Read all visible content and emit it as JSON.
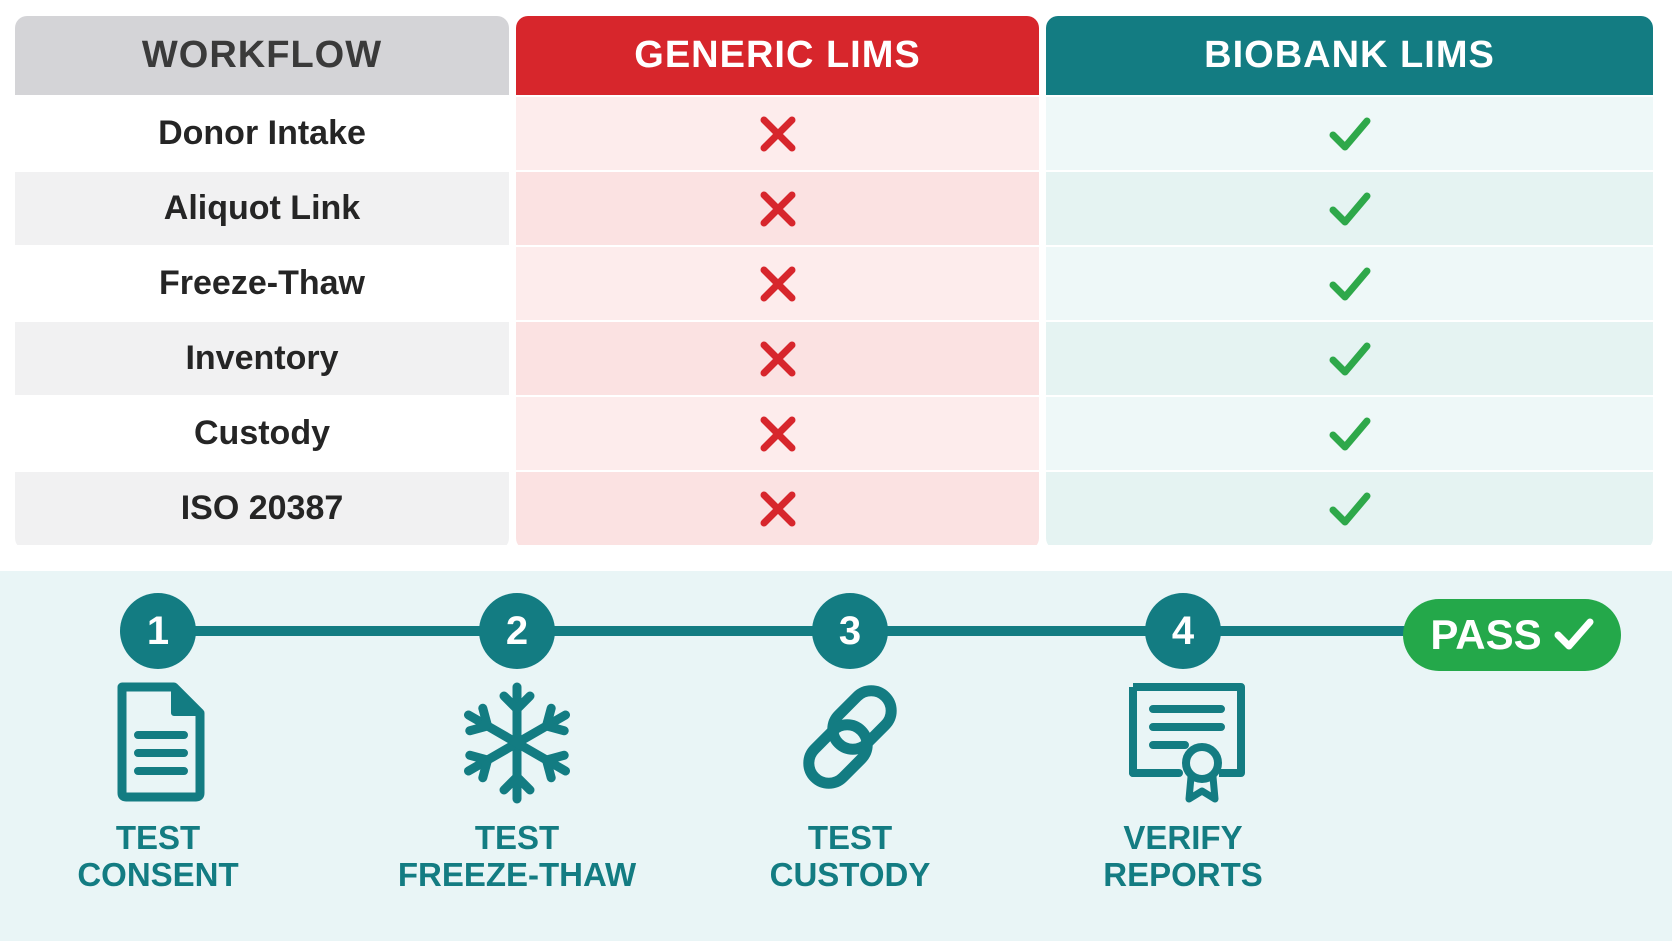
{
  "table": {
    "headers": {
      "workflow": "WORKFLOW",
      "generic": "GENERIC LIMS",
      "biobank": "BIOBANK LIMS"
    },
    "rows": [
      {
        "workflow": "Donor Intake",
        "generic": "cross-icon",
        "biobank": "check-icon"
      },
      {
        "workflow": "Aliquot Link",
        "generic": "cross-icon",
        "biobank": "check-icon"
      },
      {
        "workflow": "Freeze-Thaw",
        "generic": "cross-icon",
        "biobank": "check-icon"
      },
      {
        "workflow": "Inventory",
        "generic": "cross-icon",
        "biobank": "check-icon"
      },
      {
        "workflow": "Custody",
        "generic": "cross-icon",
        "biobank": "check-icon"
      },
      {
        "workflow": "ISO 20387",
        "generic": "cross-icon",
        "biobank": "check-icon"
      }
    ]
  },
  "process": {
    "steps": [
      {
        "number": "1",
        "icon": "document-icon",
        "label": "TEST\nCONSENT"
      },
      {
        "number": "2",
        "icon": "snowflake-icon",
        "label": "TEST\nFREEZE-THAW"
      },
      {
        "number": "3",
        "icon": "chain-link-icon",
        "label": "TEST\nCUSTODY"
      },
      {
        "number": "4",
        "icon": "certificate-icon",
        "label": "VERIFY\nREPORTS"
      }
    ],
    "result": {
      "label": "PASS",
      "icon": "check-icon"
    }
  },
  "colors": {
    "teal": "#137c82",
    "red": "#d7262c",
    "green": "#24a84a",
    "cross": "#d7262c",
    "check": "#2ea84a"
  }
}
